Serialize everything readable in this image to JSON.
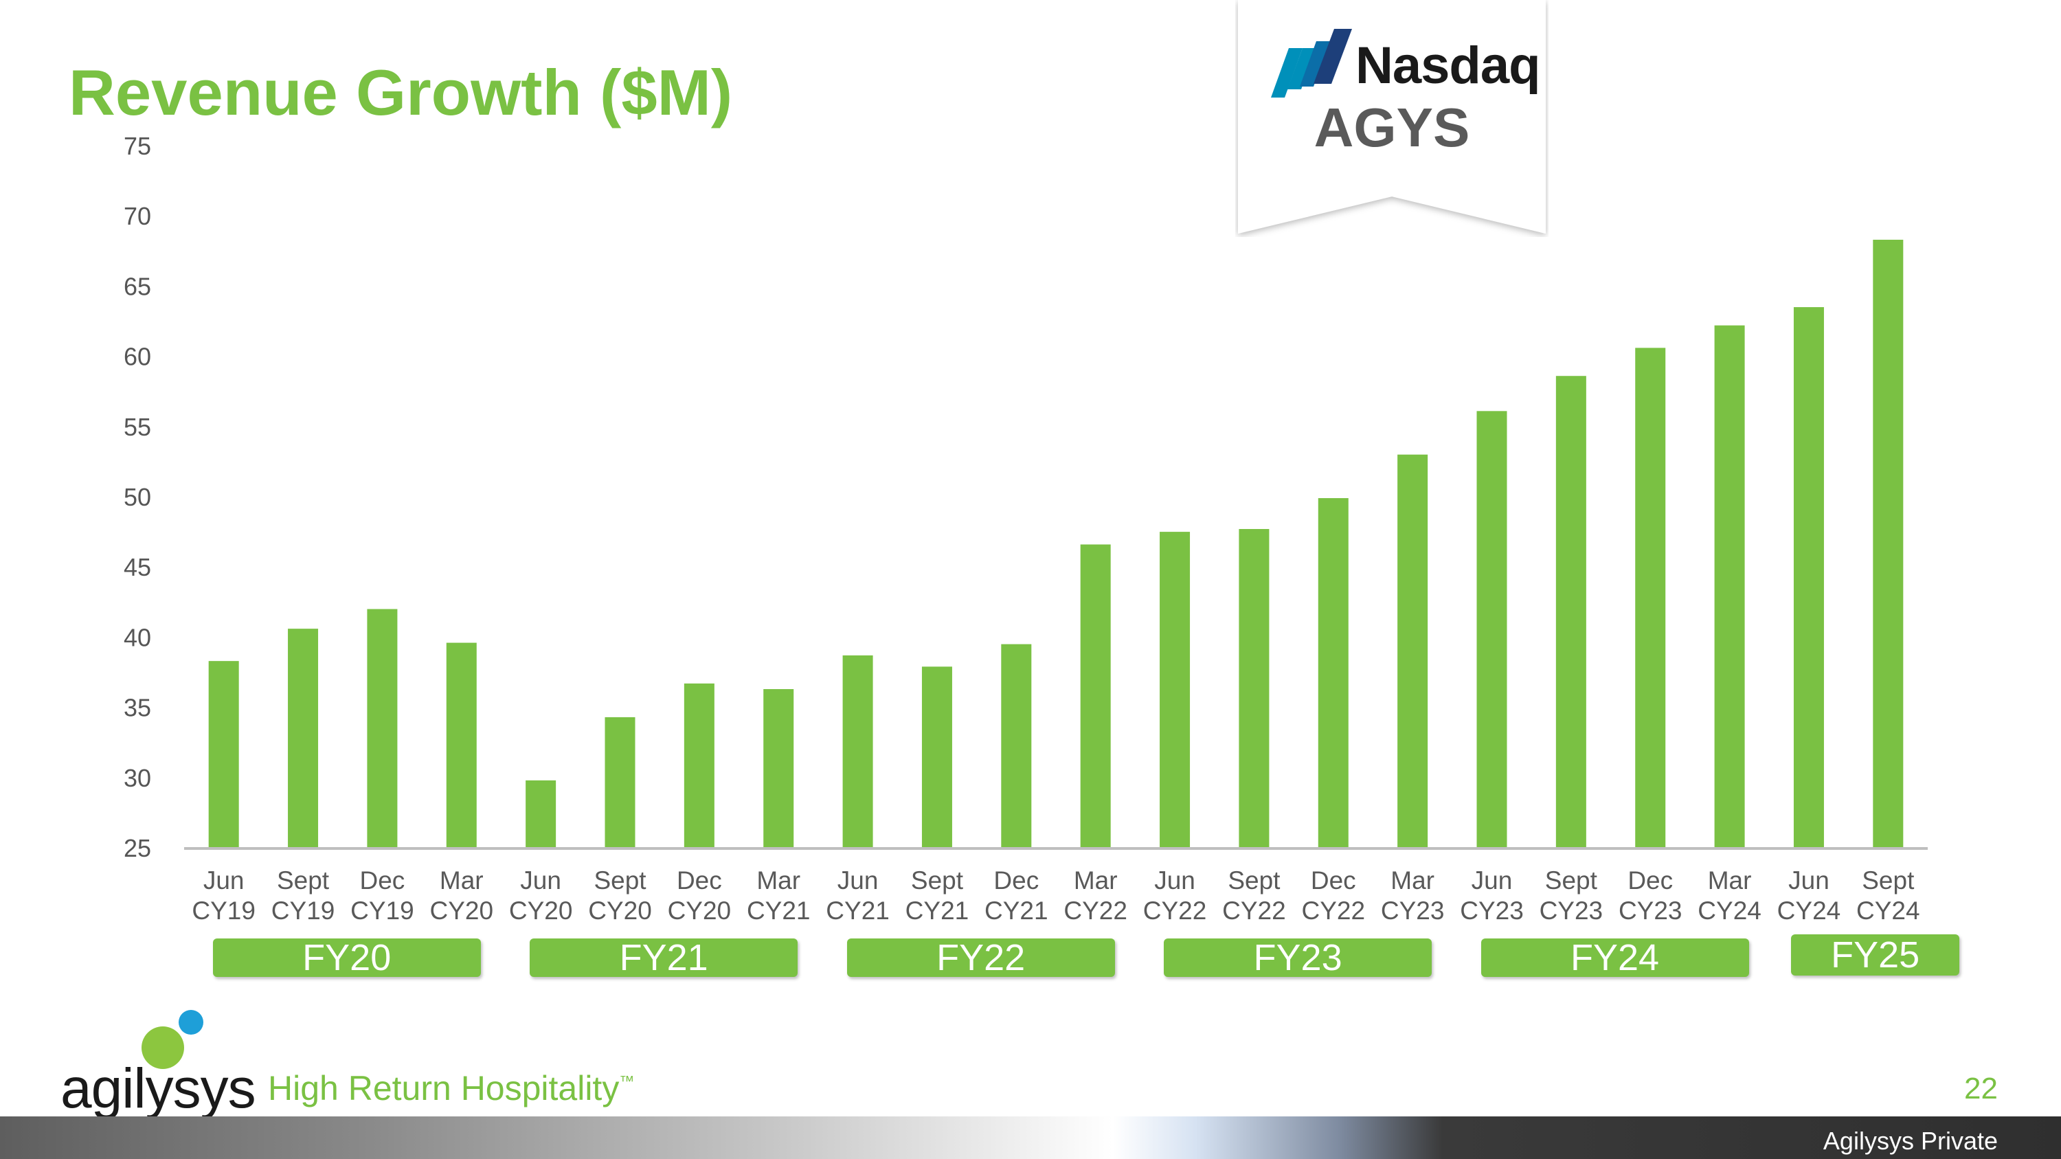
{
  "slide": {
    "title": "Revenue Growth ($M)",
    "page_number": "22",
    "footer_classification": "Agilysys Private",
    "accent_color": "#7ac143"
  },
  "badge": {
    "exchange": "Nasdaq",
    "ticker": "AGYS",
    "logo_icon": "nasdaq-logo-icon"
  },
  "brand": {
    "logo_text": "agilysys",
    "tagline": "High Return Hospitality",
    "tagline_mark": "™"
  },
  "chart_data": {
    "type": "bar",
    "title": "Revenue Growth ($M)",
    "xlabel": "",
    "ylabel": "",
    "ylim": [
      25,
      75
    ],
    "yticks": [
      25,
      30,
      35,
      40,
      45,
      50,
      55,
      60,
      65,
      70,
      75
    ],
    "grid": false,
    "bar_color": "#7ac143",
    "categories": [
      [
        "Jun",
        "CY19"
      ],
      [
        "Sept",
        "CY19"
      ],
      [
        "Dec",
        "CY19"
      ],
      [
        "Mar",
        "CY20"
      ],
      [
        "Jun",
        "CY20"
      ],
      [
        "Sept",
        "CY20"
      ],
      [
        "Dec",
        "CY20"
      ],
      [
        "Mar",
        "CY21"
      ],
      [
        "Jun",
        "CY21"
      ],
      [
        "Sept",
        "CY21"
      ],
      [
        "Dec",
        "CY21"
      ],
      [
        "Mar",
        "CY22"
      ],
      [
        "Jun",
        "CY22"
      ],
      [
        "Sept",
        "CY22"
      ],
      [
        "Dec",
        "CY22"
      ],
      [
        "Mar",
        "CY23"
      ],
      [
        "Jun",
        "CY23"
      ],
      [
        "Sept",
        "CY23"
      ],
      [
        "Dec",
        "CY23"
      ],
      [
        "Mar",
        "CY24"
      ],
      [
        "Jun",
        "CY24"
      ],
      [
        "Sept",
        "CY24"
      ]
    ],
    "values": [
      38.3,
      40.6,
      42.0,
      39.6,
      29.8,
      34.3,
      36.7,
      36.3,
      38.7,
      37.9,
      39.5,
      46.6,
      47.5,
      47.7,
      49.9,
      53.0,
      56.1,
      58.6,
      60.6,
      62.2,
      63.5,
      68.3
    ],
    "fiscal_years": [
      {
        "label": "FY20",
        "start": 0,
        "end": 3
      },
      {
        "label": "FY21",
        "start": 4,
        "end": 7
      },
      {
        "label": "FY22",
        "start": 8,
        "end": 11
      },
      {
        "label": "FY23",
        "start": 12,
        "end": 15
      },
      {
        "label": "FY24",
        "start": 16,
        "end": 19
      },
      {
        "label": "FY25",
        "start": 20,
        "end": 21
      }
    ]
  }
}
